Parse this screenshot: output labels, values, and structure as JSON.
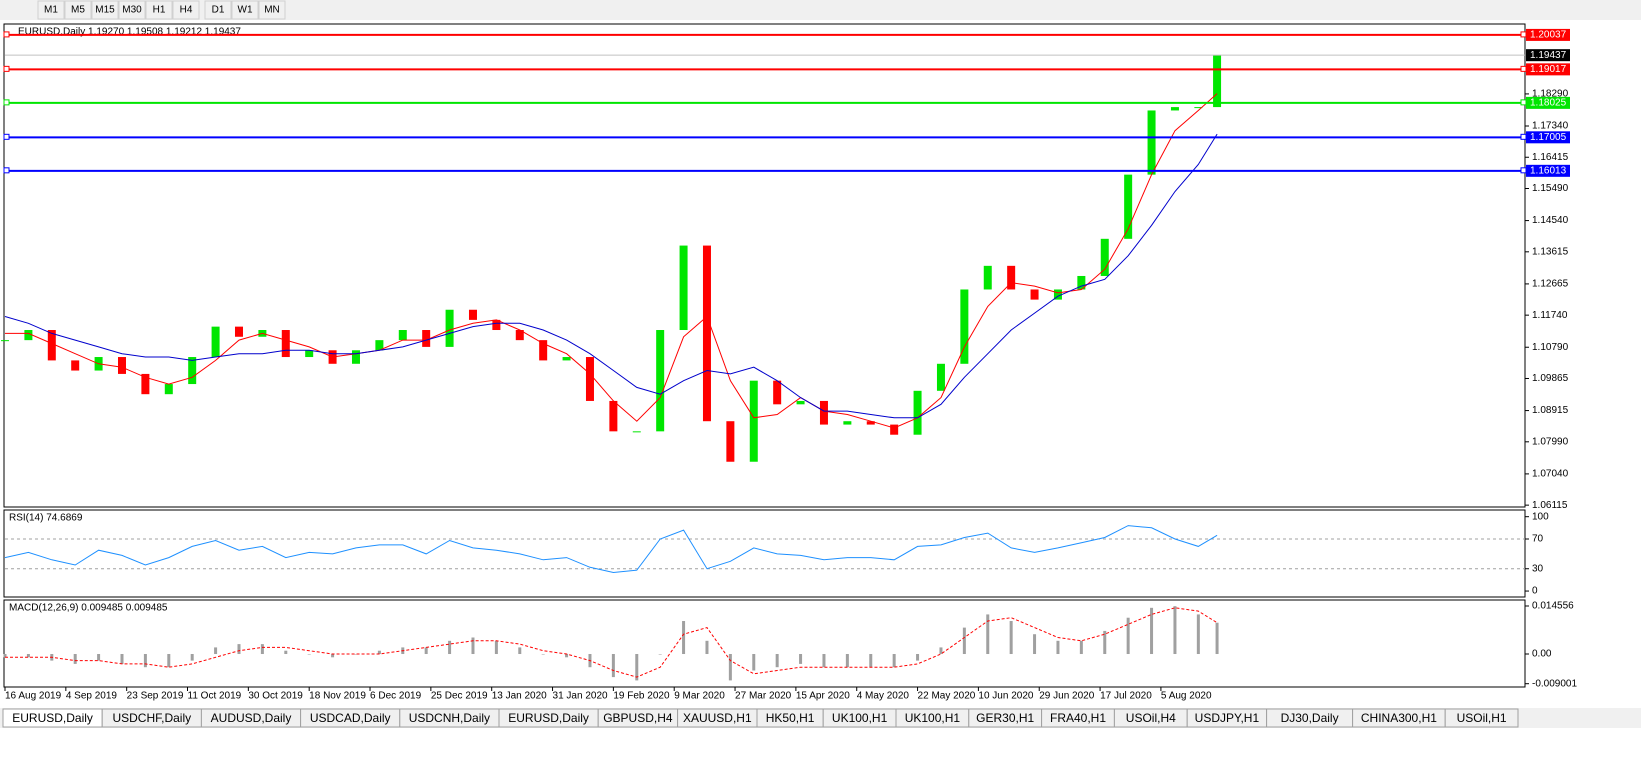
{
  "toolbar": {
    "timeframes": [
      "M1",
      "M5",
      "M15",
      "M30",
      "H1",
      "H4",
      "D1",
      "W1",
      "MN"
    ]
  },
  "tabs": [
    "EURUSD,Daily",
    "USDCHF,Daily",
    "AUDUSD,Daily",
    "USDCAD,Daily",
    "USDCNH,Daily",
    "EURUSD,Daily",
    "GBPUSD,H4",
    "XAUUSD,H1",
    "HK50,H1",
    "UK100,H1",
    "UK100,H1",
    "GER30,H1",
    "FRA40,H1",
    "USOil,H4",
    "USDJPY,H1",
    "DJ30,Daily",
    "CHINA300,H1",
    "USOil,H1"
  ],
  "chart_data": [
    {
      "type": "candlestick",
      "title": "EURUSD,Daily  1.19270 1.19508 1.19212 1.19437",
      "x": [
        0,
        5,
        10,
        15,
        20,
        25,
        30,
        35,
        40,
        45,
        50,
        55,
        60,
        65,
        70,
        75,
        80,
        85,
        90,
        95,
        100,
        105,
        110,
        115,
        120,
        125,
        130,
        135,
        140,
        145,
        150,
        155,
        160,
        165,
        170,
        175,
        180,
        185,
        190,
        195,
        200,
        205,
        210,
        215,
        220,
        225,
        230,
        235,
        240,
        245,
        250,
        255,
        259
      ],
      "close": [
        1.11,
        1.113,
        1.104,
        1.101,
        1.105,
        1.1,
        1.094,
        1.097,
        1.105,
        1.114,
        1.111,
        1.113,
        1.105,
        1.107,
        1.103,
        1.107,
        1.11,
        1.113,
        1.108,
        1.119,
        1.116,
        1.113,
        1.11,
        1.104,
        1.105,
        1.092,
        1.083,
        1.083,
        1.113,
        1.138,
        1.086,
        1.074,
        1.098,
        1.091,
        1.092,
        1.085,
        1.086,
        1.085,
        1.082,
        1.095,
        1.103,
        1.125,
        1.132,
        1.125,
        1.122,
        1.125,
        1.129,
        1.14,
        1.159,
        1.178,
        1.179,
        1.179,
        1.19437
      ],
      "up_color": "#00e600",
      "down_color": "#ff0000",
      "moving_averages": [
        {
          "color": "#ff0000",
          "values": [
            1.112,
            1.112,
            1.109,
            1.106,
            1.103,
            1.102,
            1.099,
            1.097,
            1.099,
            1.104,
            1.11,
            1.112,
            1.11,
            1.108,
            1.105,
            1.106,
            1.107,
            1.11,
            1.11,
            1.113,
            1.115,
            1.116,
            1.113,
            1.109,
            1.106,
            1.1,
            1.092,
            1.086,
            1.093,
            1.111,
            1.117,
            1.098,
            1.087,
            1.088,
            1.093,
            1.089,
            1.088,
            1.086,
            1.084,
            1.087,
            1.093,
            1.108,
            1.12,
            1.127,
            1.126,
            1.124,
            1.125,
            1.131,
            1.143,
            1.159,
            1.172,
            1.178,
            1.183
          ]
        },
        {
          "color": "#0000cc",
          "values": [
            1.117,
            1.115,
            1.112,
            1.11,
            1.108,
            1.106,
            1.105,
            1.105,
            1.104,
            1.105,
            1.106,
            1.106,
            1.107,
            1.107,
            1.106,
            1.106,
            1.107,
            1.108,
            1.11,
            1.112,
            1.114,
            1.115,
            1.115,
            1.113,
            1.11,
            1.106,
            1.101,
            1.096,
            1.094,
            1.098,
            1.101,
            1.1,
            1.102,
            1.098,
            1.093,
            1.089,
            1.089,
            1.088,
            1.087,
            1.087,
            1.091,
            1.099,
            1.106,
            1.113,
            1.118,
            1.123,
            1.126,
            1.128,
            1.135,
            1.144,
            1.154,
            1.162,
            1.171
          ]
        }
      ],
      "levels": [
        {
          "value": 1.20037,
          "color": "#ff0000"
        },
        {
          "value": 1.19017,
          "color": "#ff0000"
        },
        {
          "value": 1.18025,
          "color": "#00e600"
        },
        {
          "value": 1.17005,
          "color": "#0000ff"
        },
        {
          "value": 1.16013,
          "color": "#0000ff"
        }
      ],
      "last_price": 1.19437,
      "xlim": [
        0,
        324.8
      ],
      "ylim": [
        1.0606,
        1.2036
      ],
      "yticks": [
        {
          "value": 1.1829,
          "label": "1.18290"
        },
        {
          "value": 1.1734,
          "label": "1.17340"
        },
        {
          "value": 1.16415,
          "label": "1.16415"
        },
        {
          "value": 1.1549,
          "label": "1.15490"
        },
        {
          "value": 1.1454,
          "label": "1.14540"
        },
        {
          "value": 1.13615,
          "label": "1.13615"
        },
        {
          "value": 1.12665,
          "label": "1.12665"
        },
        {
          "value": 1.1174,
          "label": "1.11740"
        },
        {
          "value": 1.1079,
          "label": "1.10790"
        },
        {
          "value": 1.09865,
          "label": "1.09865"
        },
        {
          "value": 1.08915,
          "label": "1.08915"
        },
        {
          "value": 1.0799,
          "label": "1.07990"
        },
        {
          "value": 1.0704,
          "label": "1.07040"
        },
        {
          "value": 1.06115,
          "label": "1.06115"
        }
      ],
      "xticks": [
        {
          "value": 0,
          "label": "16 Aug 2019"
        },
        {
          "value": 13,
          "label": "4 Sep 2019"
        },
        {
          "value": 26,
          "label": "23 Sep 2019"
        },
        {
          "value": 39,
          "label": "11 Oct 2019"
        },
        {
          "value": 52,
          "label": "30 Oct 2019"
        },
        {
          "value": 65,
          "label": "18 Nov 2019"
        },
        {
          "value": 78,
          "label": "6 Dec 2019"
        },
        {
          "value": 91,
          "label": "25 Dec 2019"
        },
        {
          "value": 104,
          "label": "13 Jan 2020"
        },
        {
          "value": 117,
          "label": "31 Jan 2020"
        },
        {
          "value": 130,
          "label": "19 Feb 2020"
        },
        {
          "value": 143,
          "label": "9 Mar 2020"
        },
        {
          "value": 156,
          "label": "27 Mar 2020"
        },
        {
          "value": 169,
          "label": "15 Apr 2020"
        },
        {
          "value": 182,
          "label": "4 May 2020"
        },
        {
          "value": 195,
          "label": "22 May 2020"
        },
        {
          "value": 208,
          "label": "10 Jun 2020"
        },
        {
          "value": 221,
          "label": "29 Jun 2020"
        },
        {
          "value": 234,
          "label": "17 Jul 2020"
        },
        {
          "value": 247,
          "label": "5 Aug 2020"
        }
      ]
    },
    {
      "type": "line",
      "title": "RSI(14) 74.6869",
      "color": "#1e90ff",
      "x": [
        0,
        5,
        10,
        15,
        20,
        25,
        30,
        35,
        40,
        45,
        50,
        55,
        60,
        65,
        70,
        75,
        80,
        85,
        90,
        95,
        100,
        105,
        110,
        115,
        120,
        125,
        130,
        135,
        140,
        145,
        150,
        155,
        160,
        165,
        170,
        175,
        180,
        185,
        190,
        195,
        200,
        205,
        210,
        215,
        220,
        225,
        230,
        235,
        240,
        245,
        250,
        255,
        259
      ],
      "values": [
        45,
        52,
        42,
        35,
        55,
        48,
        35,
        45,
        60,
        68,
        55,
        60,
        45,
        52,
        50,
        58,
        62,
        62,
        50,
        68,
        58,
        55,
        50,
        42,
        45,
        32,
        25,
        28,
        70,
        82,
        30,
        40,
        58,
        50,
        48,
        42,
        45,
        45,
        42,
        60,
        62,
        72,
        78,
        58,
        52,
        58,
        65,
        72,
        88,
        85,
        70,
        60,
        75
      ],
      "xlim": [
        0,
        324.8
      ],
      "ylim": [
        -8,
        109
      ],
      "yticks": [
        100,
        70,
        30,
        0
      ],
      "levels": [
        70,
        30
      ]
    },
    {
      "type": "macd",
      "title": "MACD(12,26,9) 0.009485 0.009485",
      "x": [
        0,
        5,
        10,
        15,
        20,
        25,
        30,
        35,
        40,
        45,
        50,
        55,
        60,
        65,
        70,
        75,
        80,
        85,
        90,
        95,
        100,
        105,
        110,
        115,
        120,
        125,
        130,
        135,
        140,
        145,
        150,
        155,
        160,
        165,
        170,
        175,
        180,
        185,
        190,
        195,
        200,
        205,
        210,
        215,
        220,
        225,
        230,
        235,
        240,
        245,
        250,
        255,
        259
      ],
      "series": [
        {
          "color": "#a0a0a0",
          "values": [
            -0.001,
            -0.001,
            -0.002,
            -0.003,
            -0.002,
            -0.003,
            -0.004,
            -0.004,
            -0.002,
            0.002,
            0.003,
            0.003,
            0.001,
            0.0,
            -0.001,
            0.0,
            0.001,
            0.002,
            0.002,
            0.004,
            0.005,
            0.004,
            0.002,
            0.0,
            -0.001,
            -0.004,
            -0.007,
            -0.008,
            0.0,
            0.01,
            0.004,
            -0.008,
            -0.005,
            -0.004,
            -0.003,
            -0.004,
            -0.004,
            -0.004,
            -0.004,
            -0.002,
            0.002,
            0.008,
            0.012,
            0.01,
            0.006,
            0.004,
            0.004,
            0.007,
            0.011,
            0.014,
            0.0145,
            0.012,
            0.009485
          ]
        },
        {
          "color": "#ff0000",
          "values": [
            -0.001,
            -0.001,
            -0.001,
            -0.002,
            -0.002,
            -0.003,
            -0.003,
            -0.004,
            -0.003,
            -0.001,
            0.001,
            0.002,
            0.002,
            0.001,
            0.0,
            0.0,
            0.0,
            0.001,
            0.002,
            0.003,
            0.004,
            0.004,
            0.003,
            0.001,
            0.0,
            -0.002,
            -0.005,
            -0.007,
            -0.004,
            0.006,
            0.008,
            -0.002,
            -0.006,
            -0.005,
            -0.004,
            -0.004,
            -0.004,
            -0.004,
            -0.004,
            -0.003,
            0.0,
            0.005,
            0.01,
            0.011,
            0.008,
            0.005,
            0.004,
            0.006,
            0.009,
            0.012,
            0.014,
            0.013,
            0.009485
          ]
        }
      ],
      "xlim": [
        0,
        324.8
      ],
      "ylim": [
        -0.01,
        0.01637
      ],
      "yticks": [
        0.014556,
        {
          "value": 0,
          "label": "0.00"
        },
        -0.009001
      ]
    }
  ]
}
